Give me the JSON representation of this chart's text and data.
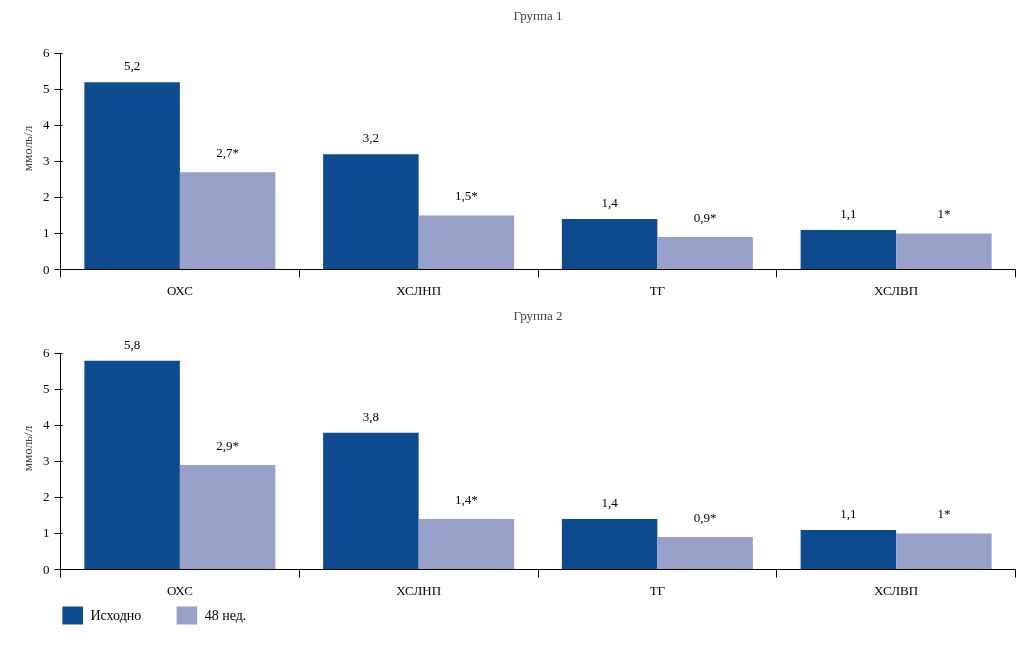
{
  "chart_data": [
    {
      "type": "bar",
      "title": "Группа 1",
      "ylabel": "ммоль/л",
      "categories": [
        "ОХС",
        "ХСЛНП",
        "ТГ",
        "ХСЛВП"
      ],
      "ylim": [
        0,
        6
      ],
      "yticks": [
        0,
        1,
        2,
        3,
        4,
        5,
        6
      ],
      "grid": false,
      "legend": false,
      "series": [
        {
          "color": "#0e4a8e",
          "values": [
            5.2,
            3.2,
            1.4,
            1.1
          ],
          "value_labels": [
            "5,2",
            "3,2",
            "1,4",
            "1,1"
          ]
        },
        {
          "color": "#97a0c8",
          "values": [
            2.7,
            1.5,
            0.9,
            1.0
          ],
          "value_labels": [
            "2,7*",
            "1,5*",
            "0,9*",
            "1*"
          ]
        }
      ]
    },
    {
      "type": "bar",
      "title": "Группа 2",
      "ylabel": "ммоль/л",
      "categories": [
        "ОХС",
        "ХСЛНП",
        "ТГ",
        "ХСЛВП"
      ],
      "ylim": [
        0,
        6
      ],
      "yticks": [
        0,
        1,
        2,
        3,
        4,
        5,
        6
      ],
      "grid": false,
      "legend": "bottom",
      "series": [
        {
          "name": "Исходно",
          "color": "#0e4a8e",
          "values": [
            5.8,
            3.8,
            1.4,
            1.1
          ],
          "value_labels": [
            "5,8",
            "3,8",
            "1,4",
            "1,1"
          ]
        },
        {
          "name": "48 нед.",
          "color": "#97a0c8",
          "values": [
            2.9,
            1.4,
            0.9,
            1.0
          ],
          "value_labels": [
            "2,9*",
            "1,4*",
            "0,9*",
            "1*"
          ]
        }
      ]
    }
  ]
}
